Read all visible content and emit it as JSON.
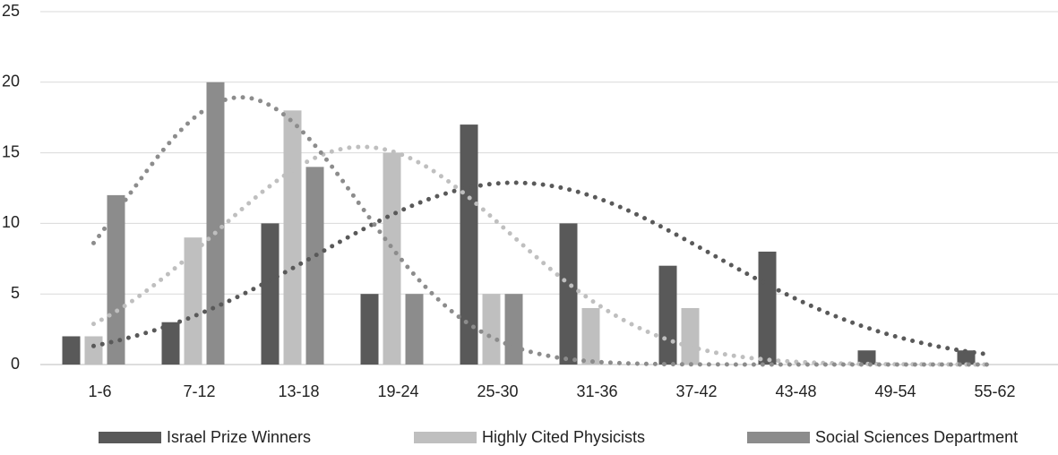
{
  "chart_data": {
    "type": "bar",
    "categories": [
      "1-6",
      "7-12",
      "13-18",
      "19-24",
      "25-30",
      "31-36",
      "37-42",
      "43-48",
      "49-54",
      "55-62"
    ],
    "series": [
      {
        "name": "Israel Prize Winners",
        "color": "#595959",
        "values": [
          2,
          3,
          10,
          5,
          17,
          10,
          7,
          8,
          1,
          1
        ]
      },
      {
        "name": "Highly Cited Physicists",
        "color": "#bfbfbf",
        "values": [
          2,
          9,
          18,
          15,
          5,
          4,
          4,
          0,
          0,
          0
        ]
      },
      {
        "name": "Social Sciences Department",
        "color": "#8c8c8c",
        "values": [
          12,
          20,
          14,
          5,
          5,
          0,
          0,
          0,
          0,
          0
        ]
      }
    ],
    "ylim": [
      0,
      25
    ],
    "yticks": [
      0,
      5,
      10,
      15,
      20,
      25
    ],
    "grid": true,
    "trendline": "dotted",
    "legend": "bottom"
  }
}
